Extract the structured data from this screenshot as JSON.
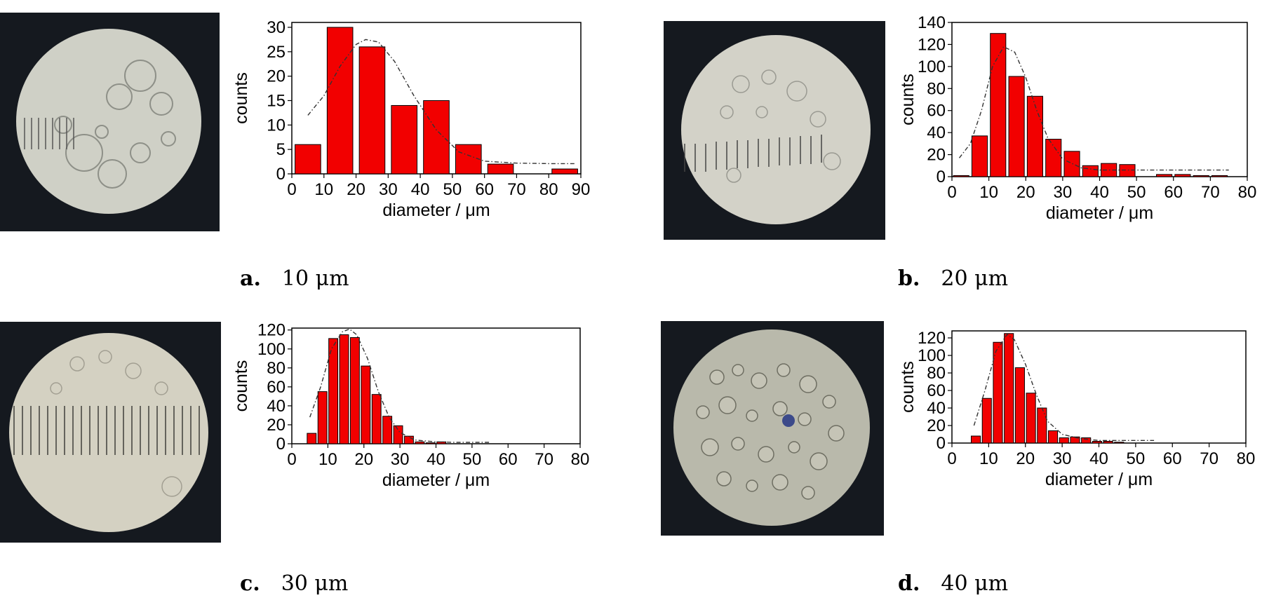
{
  "panels": [
    {
      "label": "a.",
      "size": "10 μm"
    },
    {
      "label": "b.",
      "size": "20 μm"
    },
    {
      "label": "c.",
      "size": "30 μm"
    },
    {
      "label": "d.",
      "size": "40 μm"
    }
  ],
  "chart_data": [
    {
      "type": "bar",
      "xlabel": "diameter / μm",
      "ylabel": "counts",
      "xlim": [
        0,
        90
      ],
      "ylim": [
        0,
        31
      ],
      "xticks": [
        0,
        10,
        20,
        30,
        40,
        50,
        60,
        70,
        80,
        90
      ],
      "yticks": [
        0,
        5,
        10,
        15,
        20,
        25,
        30
      ],
      "bin_width": 8,
      "x": [
        5,
        15,
        25,
        35,
        45,
        55,
        65,
        75,
        85
      ],
      "values": [
        6,
        30,
        26,
        14,
        15,
        6,
        2,
        0,
        1
      ],
      "fit_curve": {
        "style": "dash-dot",
        "x": [
          5,
          10,
          15,
          20,
          23,
          27,
          32,
          38,
          45,
          52,
          60,
          70,
          80,
          88
        ],
        "y": [
          12,
          16,
          22,
          26.5,
          27.5,
          27,
          23,
          16,
          9,
          4.5,
          2.6,
          2.2,
          2.1,
          2.1
        ]
      }
    },
    {
      "type": "bar",
      "xlabel": "diameter / μm",
      "ylabel": "counts",
      "xlim": [
        0,
        80
      ],
      "ylim": [
        0,
        140
      ],
      "xticks": [
        0,
        10,
        20,
        30,
        40,
        50,
        60,
        70,
        80
      ],
      "yticks": [
        0,
        20,
        40,
        60,
        80,
        100,
        120,
        140
      ],
      "bin_width": 4.2,
      "x": [
        2.5,
        7.5,
        12.5,
        17.5,
        22.5,
        27.5,
        32.5,
        37.5,
        42.5,
        47.5,
        52.5,
        57.5,
        62.5,
        67.5,
        72.5
      ],
      "values": [
        1,
        37,
        130,
        91,
        73,
        34,
        23,
        10,
        12,
        11,
        0,
        2,
        2,
        1,
        1
      ],
      "fit_curve": {
        "style": "dash-dot",
        "x": [
          2,
          5,
          8,
          11,
          14,
          17,
          20,
          23,
          26,
          30,
          35,
          40,
          50,
          60,
          75
        ],
        "y": [
          17,
          30,
          60,
          100,
          118,
          113,
          90,
          60,
          35,
          16,
          8,
          6,
          6,
          6,
          6
        ]
      }
    },
    {
      "type": "bar",
      "xlabel": "diameter / μm",
      "ylabel": "counts",
      "xlim": [
        0,
        80
      ],
      "ylim": [
        0,
        122
      ],
      "xticks": [
        0,
        10,
        20,
        30,
        40,
        50,
        60,
        70,
        80
      ],
      "yticks": [
        0,
        20,
        40,
        60,
        80,
        100,
        120
      ],
      "bin_width": 2.5,
      "x": [
        5.5,
        8.5,
        11.5,
        14.5,
        17.5,
        20.5,
        23.5,
        26.5,
        29.5,
        32.5,
        35.5,
        38.5,
        41.5
      ],
      "values": [
        11,
        55,
        111,
        115,
        112,
        82,
        52,
        29,
        19,
        8,
        2,
        1,
        2
      ],
      "fit_curve": {
        "style": "dash-dot",
        "x": [
          5,
          8,
          11,
          14,
          16,
          18,
          21,
          24,
          27,
          30,
          34,
          40,
          45,
          55
        ],
        "y": [
          28,
          60,
          100,
          118,
          121,
          115,
          90,
          55,
          28,
          12,
          4,
          2,
          1.5,
          1.5
        ]
      }
    },
    {
      "type": "bar",
      "xlabel": "diameter / μm",
      "ylabel": "counts",
      "xlim": [
        0,
        80
      ],
      "ylim": [
        0,
        128
      ],
      "xticks": [
        0,
        10,
        20,
        30,
        40,
        50,
        60,
        70,
        80
      ],
      "yticks": [
        0,
        20,
        40,
        60,
        80,
        100,
        120
      ],
      "bin_width": 2.5,
      "x": [
        6.5,
        9.5,
        12.5,
        15.5,
        18.5,
        21.5,
        24.5,
        27.5,
        30.5,
        33.5,
        36.5,
        39.5,
        42.5,
        45.5
      ],
      "values": [
        8,
        51,
        115,
        125,
        86,
        57,
        40,
        14,
        6,
        7,
        6,
        2,
        2,
        1
      ],
      "fit_curve": {
        "style": "dash-dot",
        "x": [
          6,
          9,
          12,
          15,
          17,
          20,
          23,
          26,
          30,
          35,
          40,
          45,
          55
        ],
        "y": [
          20,
          60,
          105,
          124,
          118,
          90,
          55,
          25,
          10,
          5,
          3,
          3,
          3
        ]
      }
    }
  ]
}
